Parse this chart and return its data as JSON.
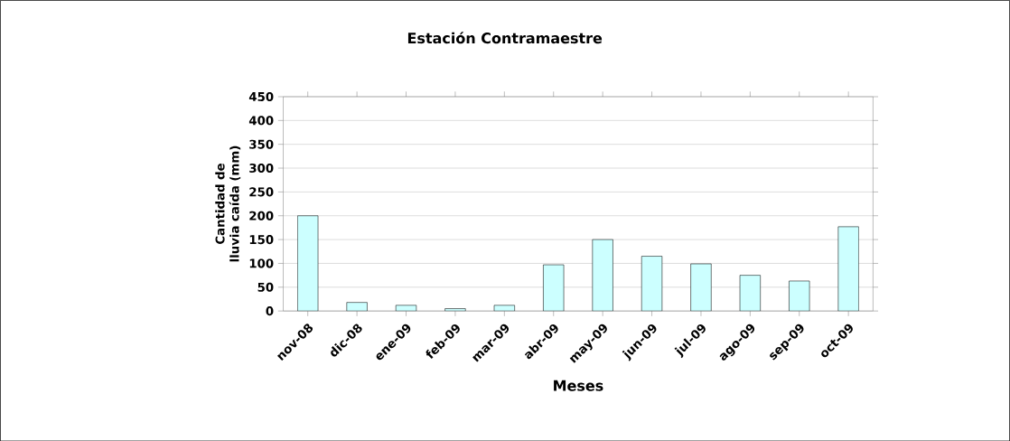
{
  "chart_data": {
    "type": "bar",
    "title": "Estación Contramaestre",
    "xlabel": "Meses",
    "ylabel": "Cantidad de lluvia caída (mm)",
    "categories": [
      "nov-08",
      "dic-08",
      "ene-09",
      "feb-09",
      "mar-09",
      "abr-09",
      "may-09",
      "jun-09",
      "jul-09",
      "ago-09",
      "sep-09",
      "oct-09"
    ],
    "values": [
      200,
      18,
      12,
      5,
      12,
      97,
      150,
      115,
      99,
      75,
      63,
      177
    ],
    "color": "#ccffff",
    "ylim": [
      0,
      450
    ],
    "yticks": [
      0,
      50,
      100,
      150,
      200,
      250,
      300,
      350,
      400,
      450
    ],
    "grid": "y"
  }
}
